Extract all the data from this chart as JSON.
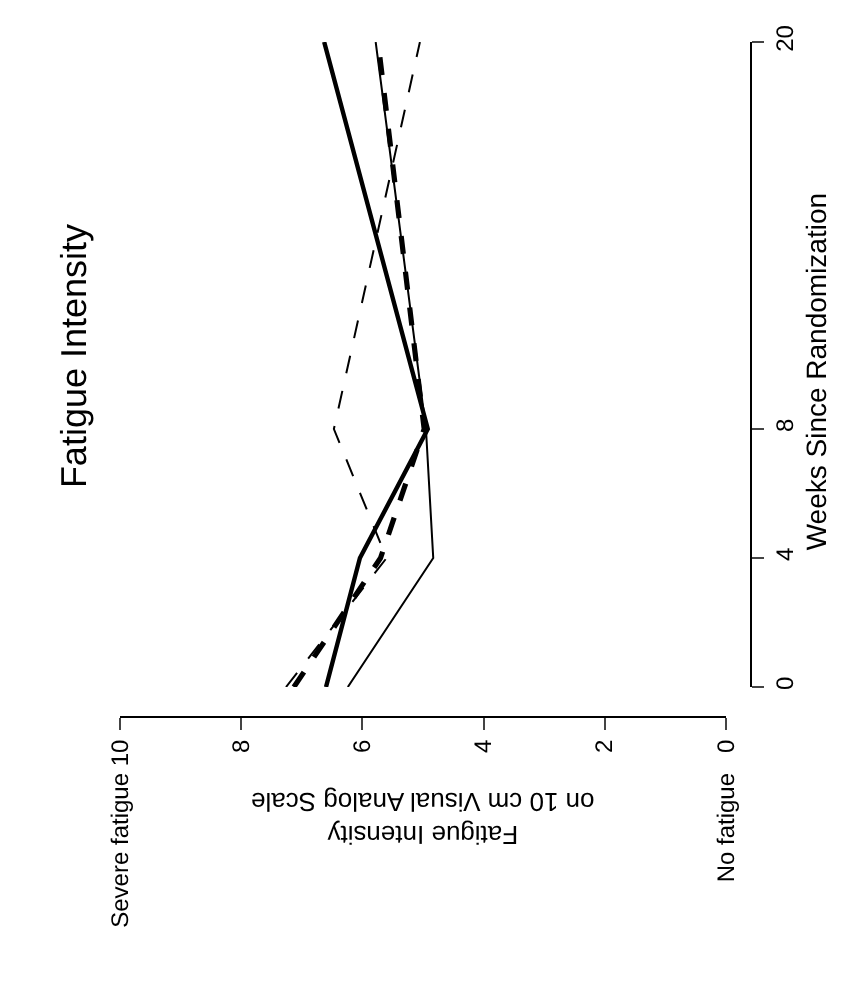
{
  "chart_data": {
    "type": "line",
    "title": "Fatigue Intensity",
    "xlabel": "Fatigue Intensity\non 10 cm Visual Analog Scale",
    "ylabel": "Weeks Since Randomization",
    "series": [
      {
        "color": "#000000",
        "line_style": "solid",
        "x": [
          6.24,
          4.83,
          4.95,
          5.78
        ],
        "values": [
          0,
          4,
          8,
          20
        ]
      },
      {
        "color": "#000000",
        "line_style": "solid",
        "x": [
          6.6,
          6.04,
          4.92,
          6.63
        ],
        "values": [
          0,
          4,
          8,
          20
        ]
      },
      {
        "color": "#000000",
        "line_style": "dashed",
        "x": [
          7.13,
          5.7,
          4.98,
          5.74
        ],
        "values": [
          0,
          4,
          8,
          20
        ]
      },
      {
        "color": "#000000",
        "line_style": "dashed",
        "x": [
          7.26,
          5.6,
          6.47,
          5.05
        ],
        "values": [
          0,
          4,
          8,
          20
        ]
      }
    ],
    "xlim": [
      10,
      0
    ],
    "xticks": [
      {
        "value": 10,
        "label": "Severe fatigue 10"
      },
      8,
      6,
      4,
      2,
      {
        "value": 0,
        "label": "No fatigue   0"
      }
    ],
    "ylim": [
      0,
      20
    ],
    "yticks": [
      0,
      4,
      8,
      20
    ],
    "marker": "none"
  }
}
